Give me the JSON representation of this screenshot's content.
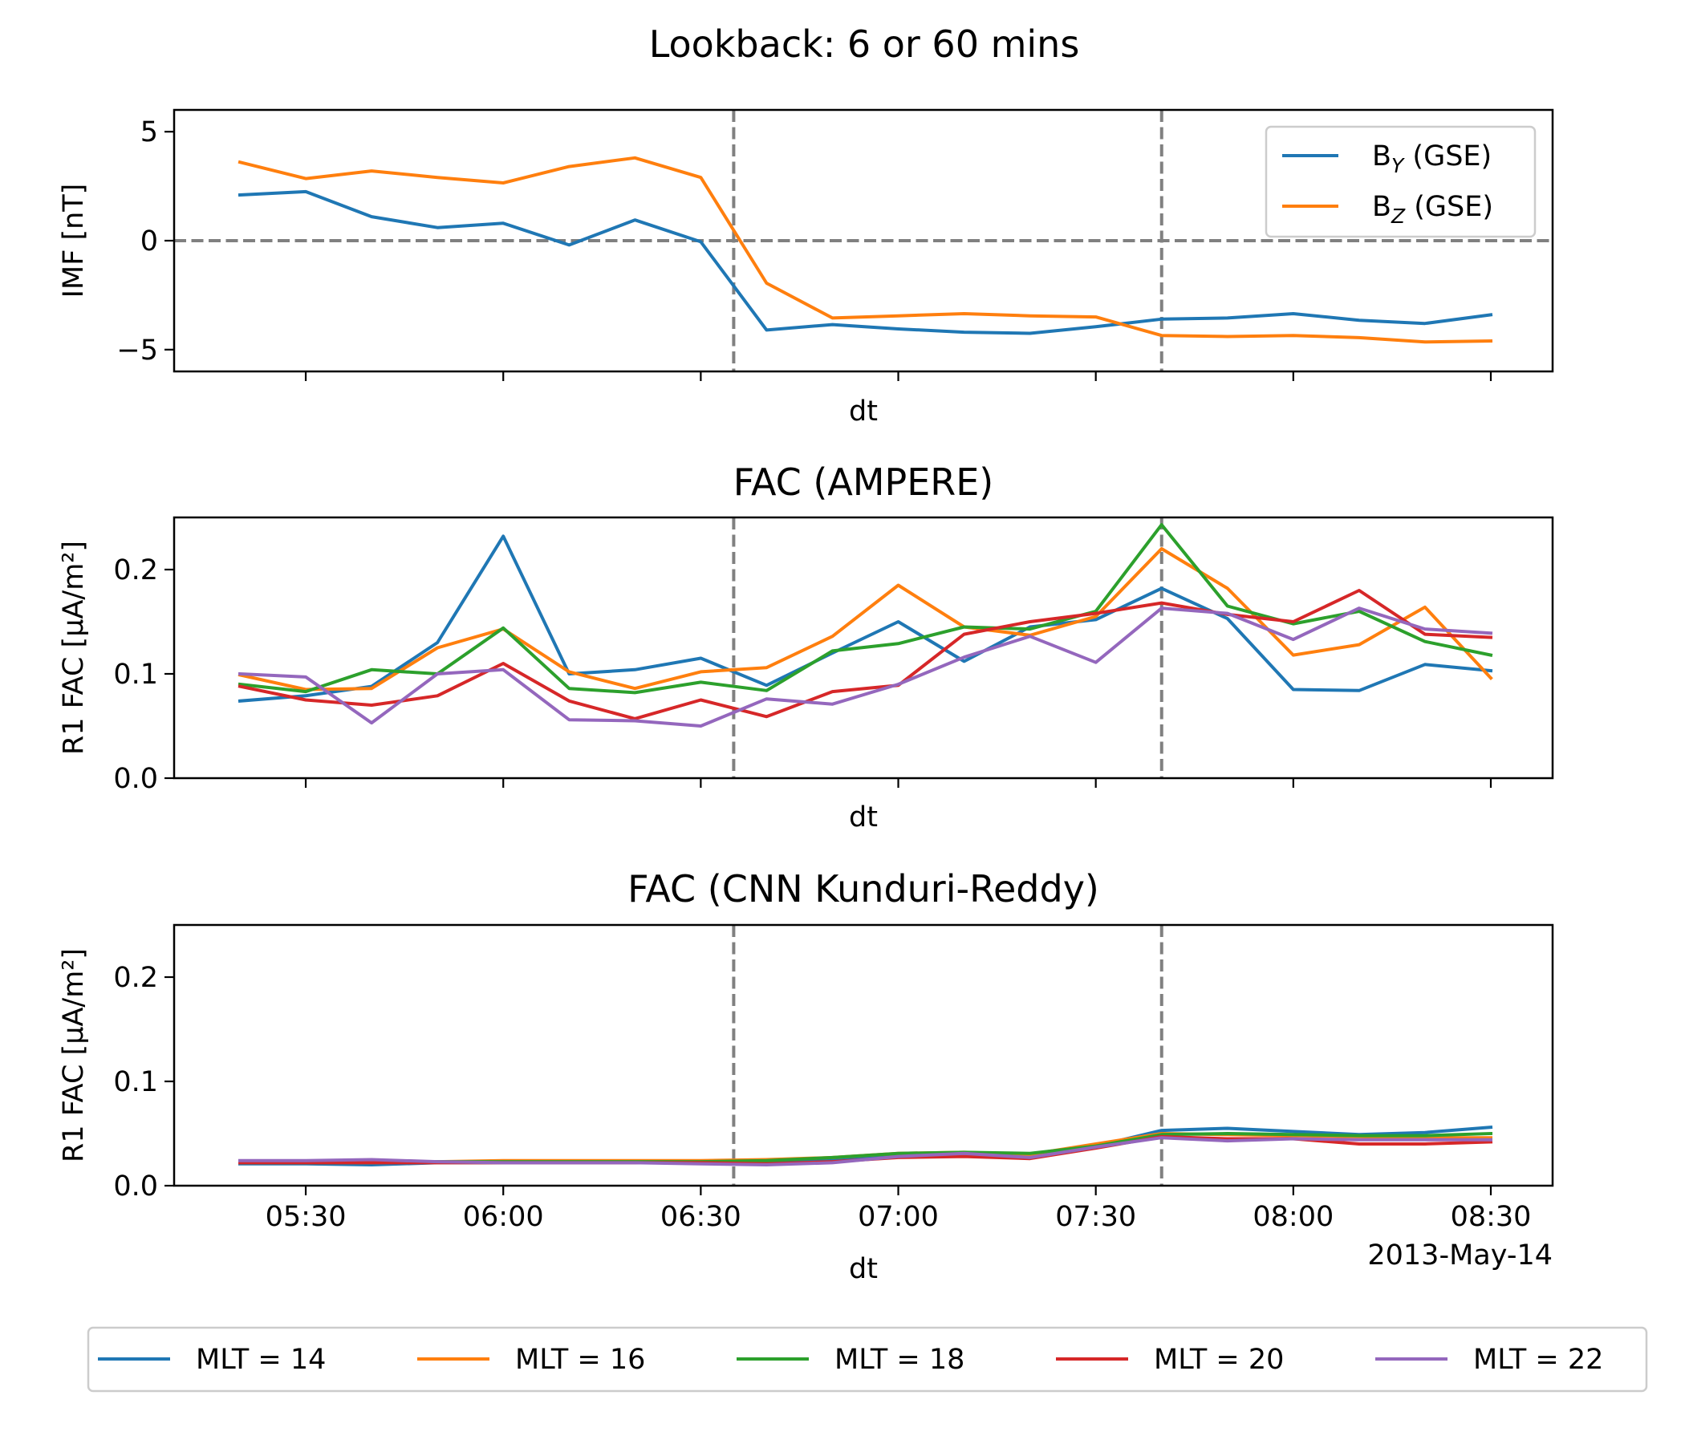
{
  "figure": {
    "suptitle": "Lookback: 6 or 60 mins",
    "date_label": "2013-May-14"
  },
  "colors": {
    "tab_blue": "#1f77b4",
    "tab_orange": "#ff7f0e",
    "tab_green": "#2ca02c",
    "tab_red": "#d62728",
    "tab_purple": "#9467bd",
    "reference_line": "#808080"
  },
  "chart_data": [
    {
      "type": "line",
      "title": "",
      "xlabel": "dt",
      "ylabel": "IMF [nT]",
      "ylim": [
        -6,
        6
      ],
      "yticks": [
        -5,
        0,
        5
      ],
      "ytick_labels": [
        "−5",
        "0",
        "5"
      ],
      "xtick_labels_visible": false,
      "reference_lines": {
        "x": [
          "06:35",
          "07:40"
        ],
        "y": [
          0
        ]
      },
      "legend": {
        "placement": "upper right",
        "entries": [
          {
            "main": "B",
            "sub": "Y",
            "rest": " (GSE)"
          },
          {
            "main": "B",
            "sub": "Z",
            "rest": " (GSE)"
          }
        ]
      },
      "x": [
        "05:20",
        "05:30",
        "05:40",
        "05:50",
        "06:00",
        "06:10",
        "06:20",
        "06:30",
        "06:40",
        "06:50",
        "07:00",
        "07:10",
        "07:20",
        "07:30",
        "07:40",
        "07:50",
        "08:00",
        "08:10",
        "08:20",
        "08:30"
      ],
      "series": [
        {
          "name": "B_Y (GSE)",
          "color": "#1f77b4",
          "values": [
            2.1,
            2.25,
            1.1,
            0.6,
            0.8,
            -0.2,
            0.95,
            -0.05,
            -4.1,
            -3.85,
            -4.05,
            -4.2,
            -4.25,
            -3.95,
            -3.6,
            -3.55,
            -3.35,
            -3.65,
            -3.8,
            -3.4
          ]
        },
        {
          "name": "B_Z (GSE)",
          "color": "#ff7f0e",
          "values": [
            3.6,
            2.85,
            3.2,
            2.9,
            2.65,
            3.4,
            3.8,
            2.9,
            -1.95,
            -3.55,
            -3.45,
            -3.35,
            -3.45,
            -3.5,
            -4.35,
            -4.4,
            -4.35,
            -4.45,
            -4.65,
            -4.6
          ]
        }
      ]
    },
    {
      "type": "line",
      "title": "FAC (AMPERE)",
      "xlabel": "dt",
      "ylabel": "R1 FAC [μA/m²]",
      "ylim": [
        0,
        0.25
      ],
      "yticks": [
        0,
        0.1,
        0.2
      ],
      "ytick_labels": [
        "0.0",
        "0.1",
        "0.2"
      ],
      "xtick_labels_visible": false,
      "reference_lines": {
        "x": [
          "06:35",
          "07:40"
        ]
      },
      "x": [
        "05:20",
        "05:30",
        "05:40",
        "05:50",
        "06:00",
        "06:10",
        "06:20",
        "06:30",
        "06:40",
        "06:50",
        "07:00",
        "07:10",
        "07:20",
        "07:30",
        "07:40",
        "07:50",
        "08:00",
        "08:10",
        "08:20",
        "08:30"
      ],
      "series": [
        {
          "name": "MLT = 14",
          "color": "#1f77b4",
          "values": [
            0.074,
            0.079,
            0.088,
            0.13,
            0.232,
            0.1,
            0.104,
            0.115,
            0.089,
            0.12,
            0.15,
            0.112,
            0.145,
            0.152,
            0.182,
            0.153,
            0.085,
            0.084,
            0.109,
            0.103
          ]
        },
        {
          "name": "MLT = 16",
          "color": "#ff7f0e",
          "values": [
            0.099,
            0.085,
            0.086,
            0.125,
            0.143,
            0.102,
            0.086,
            0.102,
            0.106,
            0.136,
            0.185,
            0.145,
            0.137,
            0.155,
            0.22,
            0.182,
            0.118,
            0.128,
            0.164,
            0.096
          ]
        },
        {
          "name": "MLT = 18",
          "color": "#2ca02c",
          "values": [
            0.09,
            0.083,
            0.104,
            0.1,
            0.144,
            0.086,
            0.082,
            0.092,
            0.084,
            0.122,
            0.129,
            0.145,
            0.143,
            0.16,
            0.243,
            0.165,
            0.148,
            0.16,
            0.131,
            0.118
          ]
        },
        {
          "name": "MLT = 20",
          "color": "#d62728",
          "values": [
            0.088,
            0.075,
            0.07,
            0.079,
            0.11,
            0.074,
            0.057,
            0.075,
            0.059,
            0.083,
            0.089,
            0.138,
            0.15,
            0.158,
            0.168,
            0.157,
            0.15,
            0.18,
            0.138,
            0.135
          ]
        },
        {
          "name": "MLT = 22",
          "color": "#9467bd",
          "values": [
            0.1,
            0.097,
            0.053,
            0.1,
            0.104,
            0.056,
            0.055,
            0.05,
            0.076,
            0.071,
            0.09,
            0.116,
            0.136,
            0.111,
            0.163,
            0.158,
            0.133,
            0.163,
            0.143,
            0.139
          ]
        }
      ]
    },
    {
      "type": "line",
      "title": "FAC (CNN Kunduri-Reddy)",
      "xlabel": "dt",
      "ylabel": "R1 FAC [μA/m²]",
      "ylim": [
        0,
        0.25
      ],
      "yticks": [
        0,
        0.1,
        0.2
      ],
      "ytick_labels": [
        "0.0",
        "0.1",
        "0.2"
      ],
      "xticks": [
        "05:30",
        "06:00",
        "06:30",
        "07:00",
        "07:30",
        "08:00",
        "08:30"
      ],
      "xtick_labels_visible": true,
      "reference_lines": {
        "x": [
          "06:35",
          "07:40"
        ]
      },
      "x": [
        "05:20",
        "05:30",
        "05:40",
        "05:50",
        "06:00",
        "06:10",
        "06:20",
        "06:30",
        "06:40",
        "06:50",
        "07:00",
        "07:10",
        "07:20",
        "07:30",
        "07:40",
        "07:50",
        "08:00",
        "08:10",
        "08:20",
        "08:30"
      ],
      "series": [
        {
          "name": "MLT = 14",
          "color": "#1f77b4",
          "values": [
            0.021,
            0.021,
            0.02,
            0.022,
            0.022,
            0.022,
            0.022,
            0.022,
            0.022,
            0.025,
            0.03,
            0.031,
            0.03,
            0.038,
            0.053,
            0.055,
            0.052,
            0.049,
            0.051,
            0.056
          ]
        },
        {
          "name": "MLT = 16",
          "color": "#ff7f0e",
          "values": [
            0.023,
            0.023,
            0.023,
            0.023,
            0.024,
            0.024,
            0.024,
            0.024,
            0.025,
            0.027,
            0.031,
            0.032,
            0.03,
            0.04,
            0.05,
            0.049,
            0.048,
            0.047,
            0.046,
            0.046
          ]
        },
        {
          "name": "MLT = 18",
          "color": "#2ca02c",
          "values": [
            0.022,
            0.022,
            0.022,
            0.023,
            0.023,
            0.023,
            0.023,
            0.023,
            0.024,
            0.027,
            0.031,
            0.032,
            0.031,
            0.038,
            0.049,
            0.05,
            0.049,
            0.048,
            0.048,
            0.05
          ]
        },
        {
          "name": "MLT = 20",
          "color": "#d62728",
          "values": [
            0.022,
            0.022,
            0.022,
            0.022,
            0.022,
            0.022,
            0.022,
            0.022,
            0.021,
            0.023,
            0.027,
            0.028,
            0.026,
            0.036,
            0.047,
            0.045,
            0.045,
            0.04,
            0.04,
            0.042
          ]
        },
        {
          "name": "MLT = 22",
          "color": "#9467bd",
          "values": [
            0.024,
            0.024,
            0.025,
            0.023,
            0.022,
            0.022,
            0.022,
            0.021,
            0.02,
            0.022,
            0.028,
            0.031,
            0.027,
            0.037,
            0.046,
            0.043,
            0.045,
            0.044,
            0.044,
            0.044
          ]
        }
      ]
    }
  ],
  "fac_legend": {
    "entries": [
      "MLT = 14",
      "MLT = 16",
      "MLT = 18",
      "MLT = 20",
      "MLT = 22"
    ]
  }
}
